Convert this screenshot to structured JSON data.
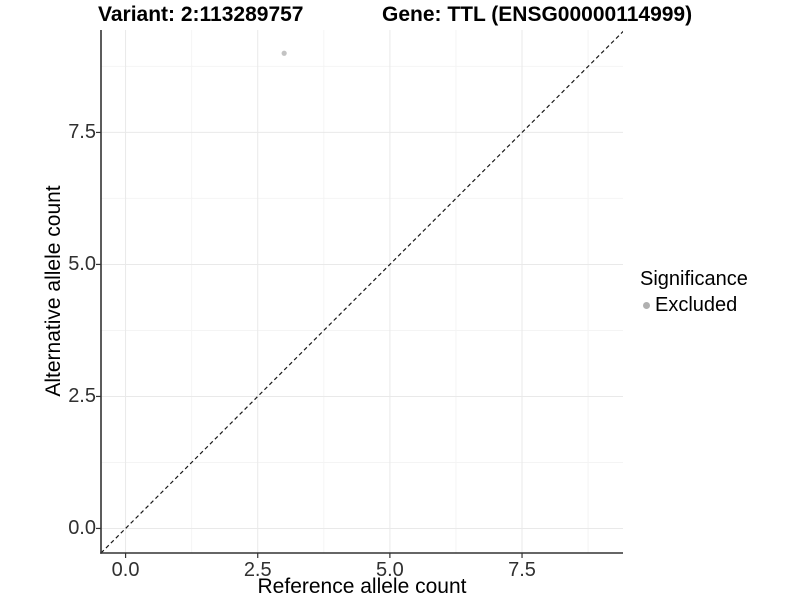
{
  "header": {
    "variant_title": "Variant: 2:113289757",
    "gene_title": "Gene: TTL (ENSG00000114999)"
  },
  "chart_data": {
    "type": "scatter",
    "title": "Variant: 2:113289757 / Gene: TTL (ENSG00000114999)",
    "xlabel": "Reference allele count",
    "ylabel": "Alternative allele count",
    "xlim": [
      -0.465,
      9.41
    ],
    "ylim": [
      -0.465,
      9.44
    ],
    "x_ticks": {
      "values": [
        0,
        2.5,
        5,
        7.5
      ],
      "labels": [
        "0.0",
        "2.5",
        "5.0",
        "7.5"
      ]
    },
    "y_ticks": {
      "values": [
        0,
        2.5,
        5,
        7.5
      ],
      "labels": [
        "0.0",
        "2.5",
        "5.0",
        "7.5"
      ]
    },
    "x_minor": [
      1.25,
      3.75,
      6.25,
      8.75
    ],
    "y_minor": [
      1.25,
      3.75,
      6.25,
      8.75
    ],
    "grid": true,
    "legend_position": "right",
    "points": [
      {
        "x": 3,
        "y": 9,
        "significance": "Excluded",
        "color": "#c3c3c3"
      }
    ],
    "identity_line": {
      "style": "dashed",
      "slope": 1,
      "intercept": 0
    },
    "colors": {
      "grid_major": "#e9e9e9",
      "grid_minor": "#f4f4f4",
      "axis": "#333333",
      "identity": "#1a1a1a",
      "point": "#c3c3c3"
    }
  },
  "legend": {
    "title": "Significance",
    "items": [
      {
        "label": "Excluded",
        "color": "#b0b0b0",
        "marker": "circle"
      }
    ]
  }
}
